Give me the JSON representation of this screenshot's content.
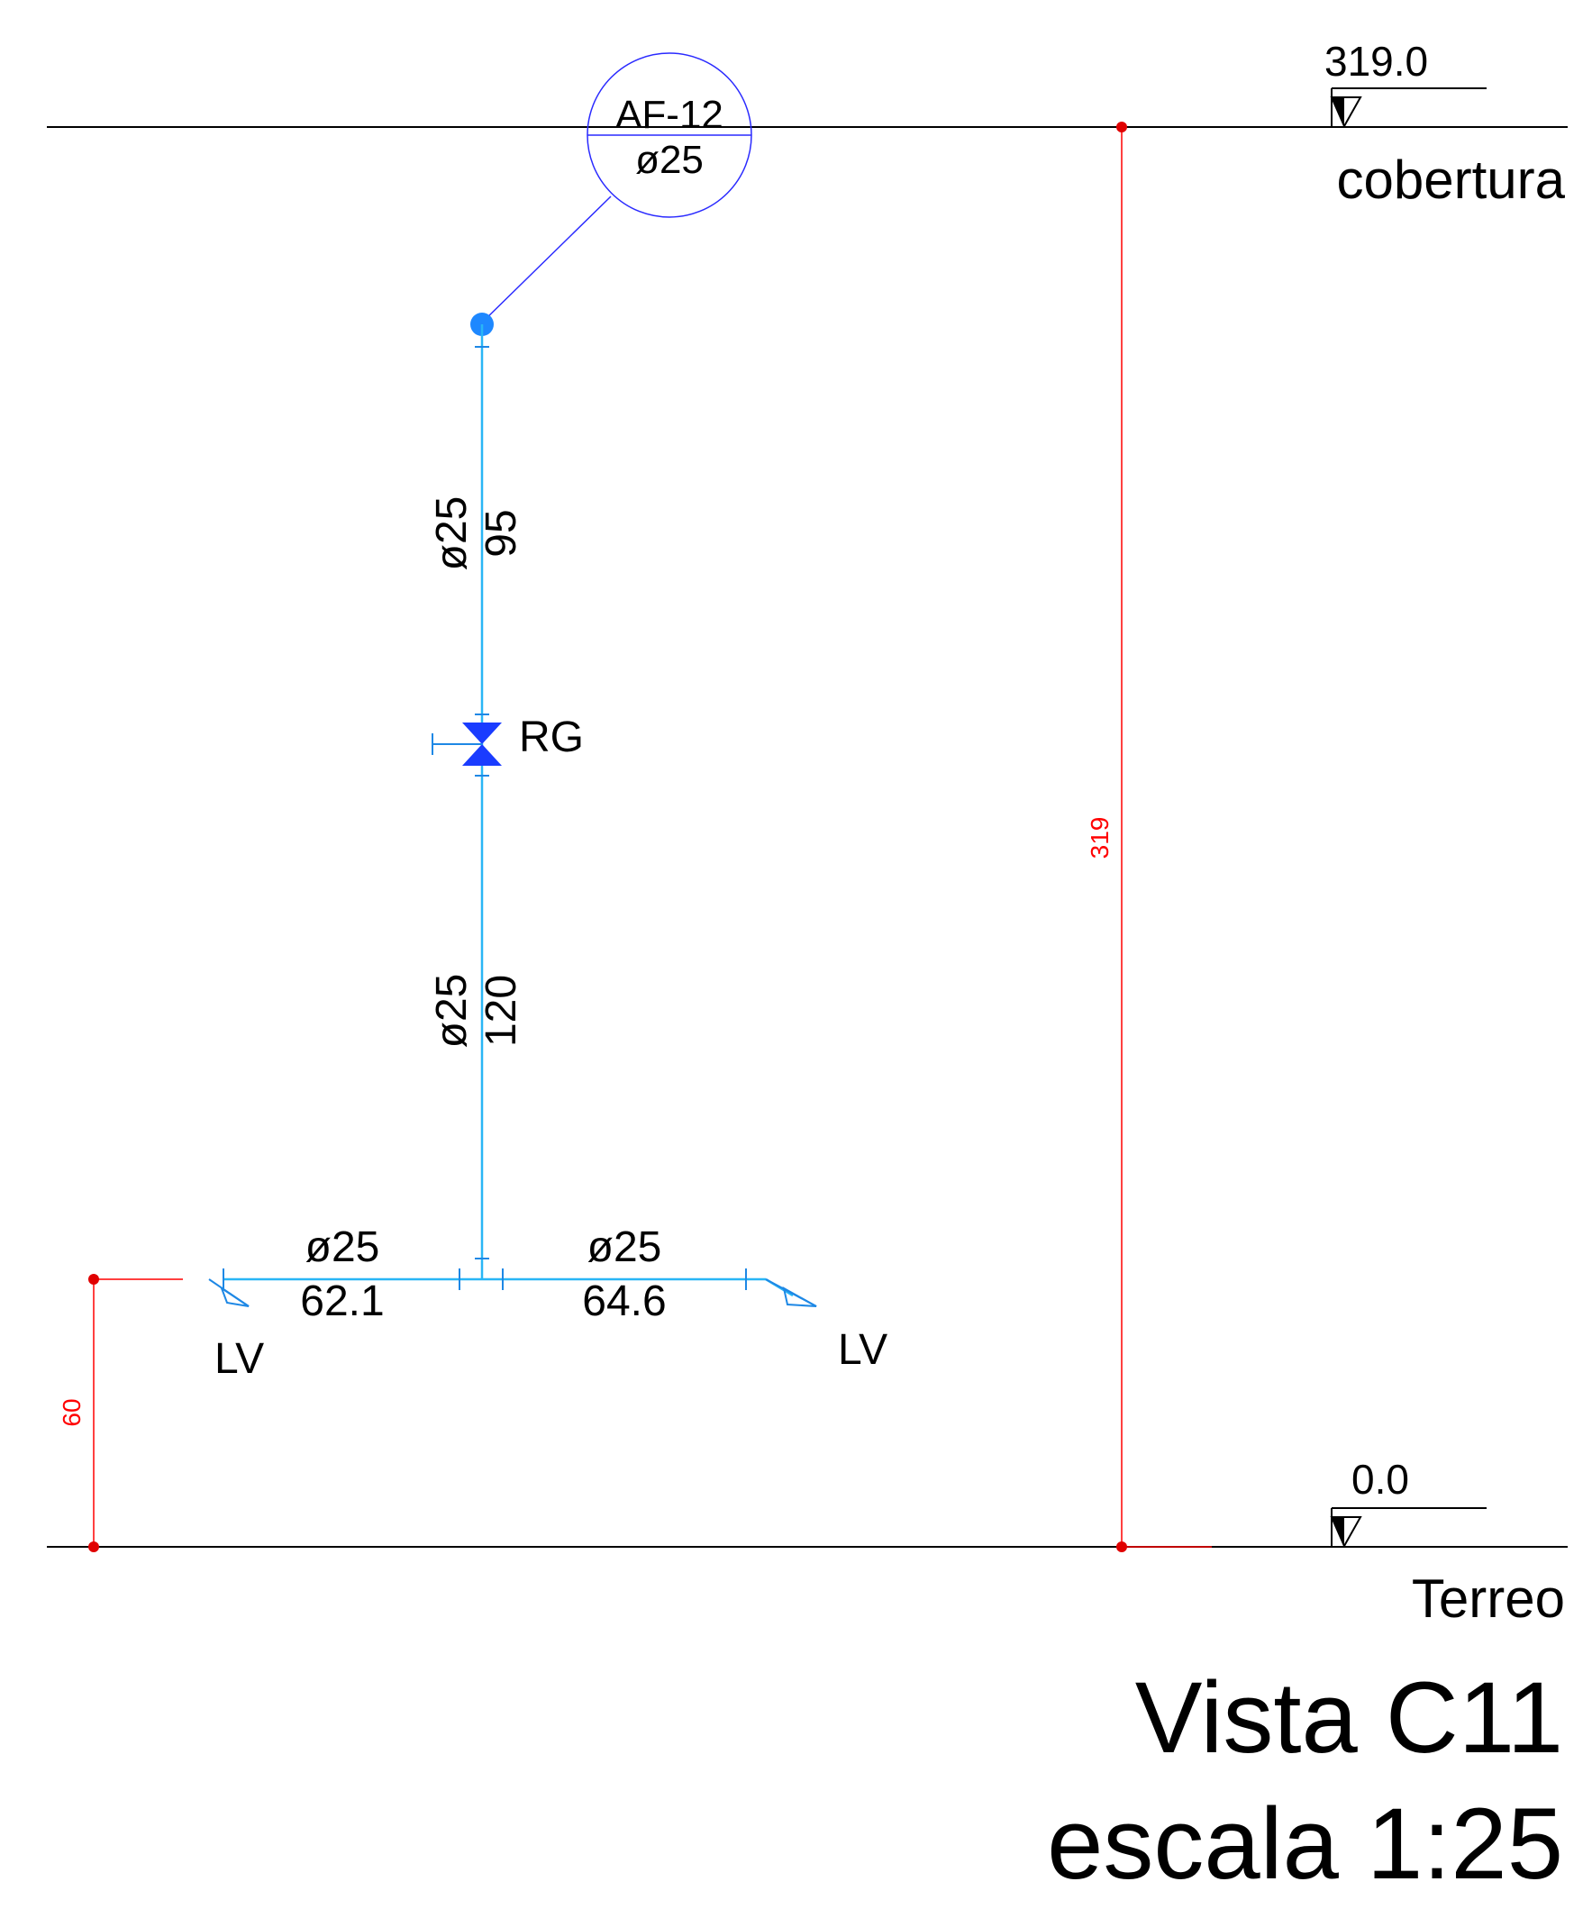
{
  "levels": {
    "top": {
      "value": "319.0",
      "name": "cobertura"
    },
    "bottom": {
      "value": "0.0",
      "name": "Terreo"
    }
  },
  "tag": {
    "code": "AF-12",
    "diameter": "ø25"
  },
  "valve": {
    "label": "RG"
  },
  "segments": {
    "upper": {
      "diameter": "ø25",
      "length": "95"
    },
    "lower": {
      "diameter": "ø25",
      "length": "120"
    },
    "left": {
      "diameter": "ø25",
      "length": "62.1"
    },
    "right": {
      "diameter": "ø25",
      "length": "64.6"
    }
  },
  "fixtures": {
    "left": "LV",
    "right": "LV"
  },
  "dimensions": {
    "height_total": "319",
    "height_fixture": "60"
  },
  "title": {
    "view": "Vista C11",
    "scale": "escala 1:25"
  },
  "colors": {
    "pipe": "#29b6f6",
    "valve": "#1a3cff",
    "dimension": "#ff0000",
    "tag": "#2a2aff"
  }
}
